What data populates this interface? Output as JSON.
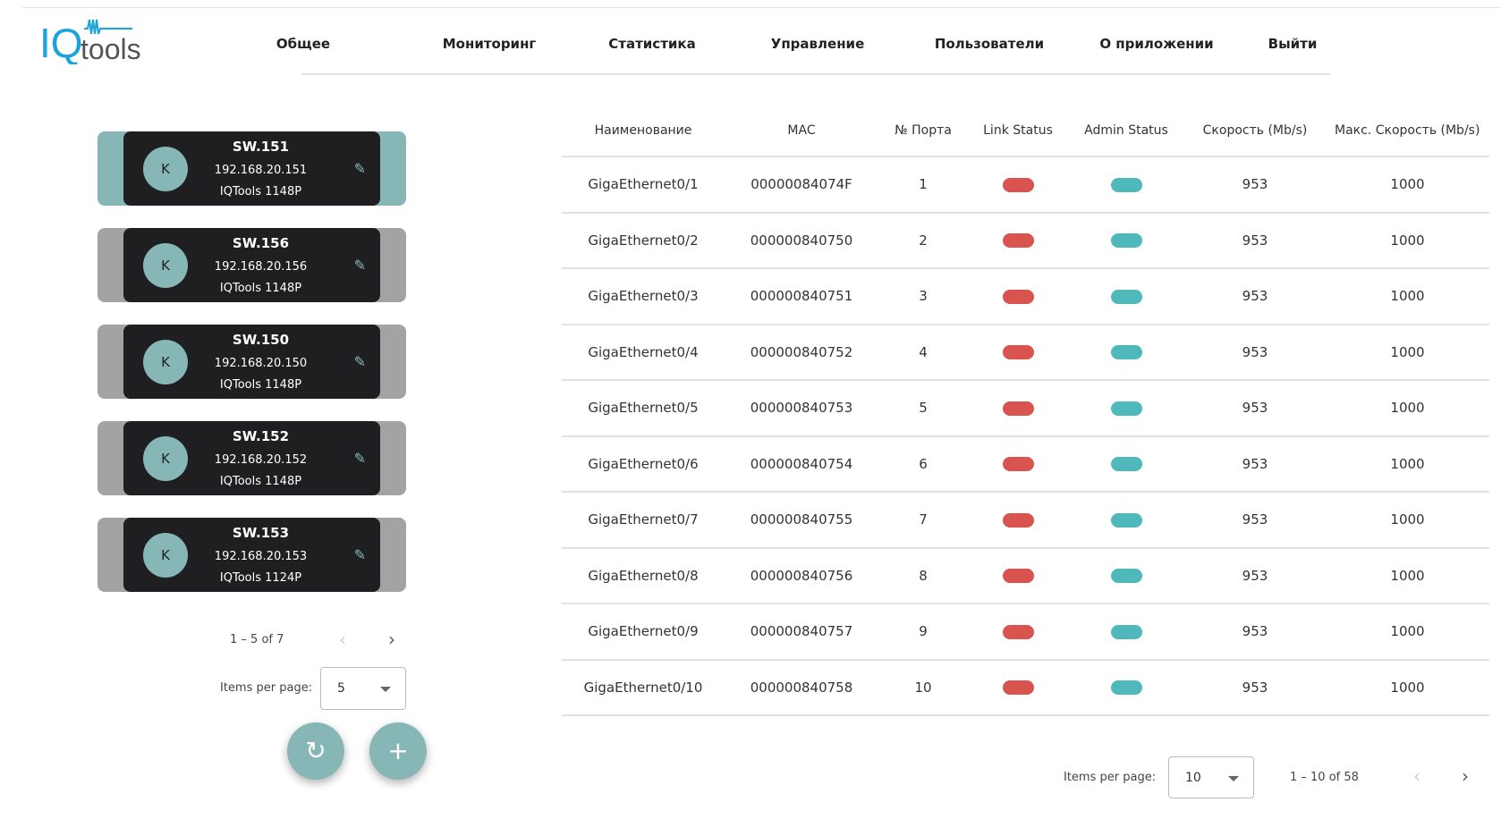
{
  "logo": {
    "text": "IQtools",
    "color": "#1aa3dd"
  },
  "nav": [
    "Общее",
    "Мониторинг",
    "Статистика",
    "Управление",
    "Пользователи",
    "О приложении",
    "Выйти"
  ],
  "devices": [
    {
      "avatar": "K",
      "name": "SW.151",
      "ip": "192.168.20.151",
      "model": "IQTools 1148P",
      "active": true
    },
    {
      "avatar": "K",
      "name": "SW.156",
      "ip": "192.168.20.156",
      "model": "IQTools 1148P",
      "active": false
    },
    {
      "avatar": "K",
      "name": "SW.150",
      "ip": "192.168.20.150",
      "model": "IQTools 1148P",
      "active": false
    },
    {
      "avatar": "K",
      "name": "SW.152",
      "ip": "192.168.20.152",
      "model": "IQTools 1148P",
      "active": false
    },
    {
      "avatar": "K",
      "name": "SW.153",
      "ip": "192.168.20.153",
      "model": "IQTools 1124P",
      "active": false
    }
  ],
  "device_pager": {
    "range": "1 – 5 of 7",
    "items_label": "Items per page:",
    "items_value": "5"
  },
  "table": {
    "columns": [
      "Наименование",
      "MAC",
      "№ Порта",
      "Link Status",
      "Admin Status",
      "Скорость (Mb/s)",
      "Макс. Скорость (Mb/s)"
    ],
    "rows": [
      {
        "name": "GigaEthernet0/1",
        "mac": "00000084074F",
        "port": "1",
        "link": "down",
        "admin": "up",
        "speed": "953",
        "max": "1000"
      },
      {
        "name": "GigaEthernet0/2",
        "mac": "000000840750",
        "port": "2",
        "link": "down",
        "admin": "up",
        "speed": "953",
        "max": "1000"
      },
      {
        "name": "GigaEthernet0/3",
        "mac": "000000840751",
        "port": "3",
        "link": "down",
        "admin": "up",
        "speed": "953",
        "max": "1000"
      },
      {
        "name": "GigaEthernet0/4",
        "mac": "000000840752",
        "port": "4",
        "link": "down",
        "admin": "up",
        "speed": "953",
        "max": "1000"
      },
      {
        "name": "GigaEthernet0/5",
        "mac": "000000840753",
        "port": "5",
        "link": "down",
        "admin": "up",
        "speed": "953",
        "max": "1000"
      },
      {
        "name": "GigaEthernet0/6",
        "mac": "000000840754",
        "port": "6",
        "link": "down",
        "admin": "up",
        "speed": "953",
        "max": "1000"
      },
      {
        "name": "GigaEthernet0/7",
        "mac": "000000840755",
        "port": "7",
        "link": "down",
        "admin": "up",
        "speed": "953",
        "max": "1000"
      },
      {
        "name": "GigaEthernet0/8",
        "mac": "000000840756",
        "port": "8",
        "link": "down",
        "admin": "up",
        "speed": "953",
        "max": "1000"
      },
      {
        "name": "GigaEthernet0/9",
        "mac": "000000840757",
        "port": "9",
        "link": "down",
        "admin": "up",
        "speed": "953",
        "max": "1000"
      },
      {
        "name": "GigaEthernet0/10",
        "mac": "000000840758",
        "port": "10",
        "link": "down",
        "admin": "up",
        "speed": "953",
        "max": "1000"
      }
    ]
  },
  "table_pager": {
    "items_label": "Items per page:",
    "items_value": "10",
    "range": "1 – 10 of 58"
  },
  "colors": {
    "accent": "#86b7b6",
    "link_down": "#d9534f",
    "admin_up": "#4fb8bb"
  }
}
